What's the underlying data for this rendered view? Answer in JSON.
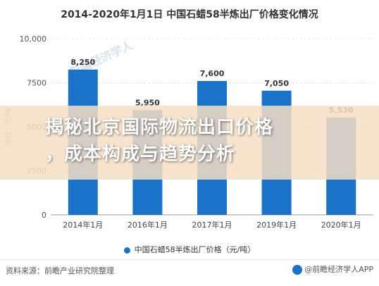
{
  "chart_data": {
    "type": "bar",
    "title": "2014-2020年1月1日 中国石蜡58半炼出厂价格变化情况",
    "categories": [
      "2014年1月",
      "2016年1月",
      "2017年1月",
      "2019年1月",
      "2020年1月"
    ],
    "series": [
      {
        "name": "中国石蜡58半炼出厂价格（元/吨）",
        "values": [
          8250,
          5950,
          7600,
          7050,
          5530
        ],
        "labels": [
          "8,250",
          "5,950",
          "7,600",
          "7,050",
          "5,530"
        ]
      }
    ],
    "ylabel": "单位：元/吨",
    "ylim": [
      0,
      10000
    ],
    "yticks": [
      0,
      2500,
      5000,
      7500,
      10000
    ],
    "ytick_labels": [
      "0",
      "2500",
      "5000",
      "7500",
      "10,000"
    ],
    "grid": true,
    "bar_color": "#1a73c8",
    "legend_position": "bottom"
  },
  "overlay": {
    "line1": "揭秘北京国际物流出口价格",
    "line2": "，成本构成与趋势分析"
  },
  "watermark": "前瞻经济学人",
  "footer": {
    "source": "资料来源：前瞻产业研究院整理",
    "brand": "@前瞻经济学人APP"
  }
}
